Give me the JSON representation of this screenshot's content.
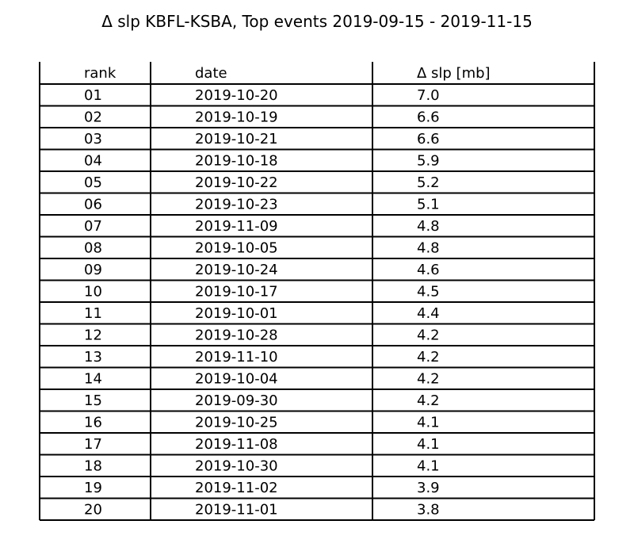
{
  "chart_data": {
    "type": "table",
    "title": "Δ slp KBFL-KSBA, Top events 2019-09-15 - 2019-11-15",
    "columns": [
      "rank",
      "date",
      "Δ slp [mb]"
    ],
    "rows": [
      [
        "01",
        "2019-10-20",
        "7.0"
      ],
      [
        "02",
        "2019-10-19",
        "6.6"
      ],
      [
        "03",
        "2019-10-21",
        "6.6"
      ],
      [
        "04",
        "2019-10-18",
        "5.9"
      ],
      [
        "05",
        "2019-10-22",
        "5.2"
      ],
      [
        "06",
        "2019-10-23",
        "5.1"
      ],
      [
        "07",
        "2019-11-09",
        "4.8"
      ],
      [
        "08",
        "2019-10-05",
        "4.8"
      ],
      [
        "09",
        "2019-10-24",
        "4.6"
      ],
      [
        "10",
        "2019-10-17",
        "4.5"
      ],
      [
        "11",
        "2019-10-01",
        "4.4"
      ],
      [
        "12",
        "2019-10-28",
        "4.2"
      ],
      [
        "13",
        "2019-11-10",
        "4.2"
      ],
      [
        "14",
        "2019-10-04",
        "4.2"
      ],
      [
        "15",
        "2019-09-30",
        "4.2"
      ],
      [
        "16",
        "2019-10-25",
        "4.1"
      ],
      [
        "17",
        "2019-11-08",
        "4.1"
      ],
      [
        "18",
        "2019-10-30",
        "4.1"
      ],
      [
        "19",
        "2019-11-02",
        "3.9"
      ],
      [
        "20",
        "2019-11-01",
        "3.8"
      ]
    ]
  }
}
